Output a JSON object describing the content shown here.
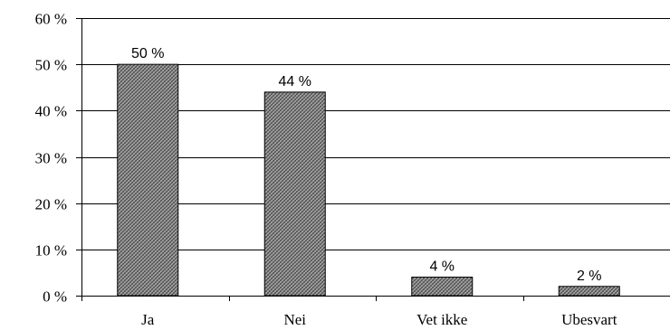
{
  "chart_data": {
    "type": "bar",
    "categories": [
      "Ja",
      "Nei",
      "Vet ikke",
      "Ubesvart"
    ],
    "values": [
      50,
      44,
      4,
      2
    ],
    "data_labels": [
      "50 %",
      "44 %",
      "4 %",
      "2 %"
    ],
    "title": "",
    "xlabel": "",
    "ylabel": "",
    "ylim": [
      0,
      60
    ],
    "y_ticks": [
      0,
      10,
      20,
      30,
      40,
      50,
      60
    ],
    "y_tick_labels": [
      "0 %",
      "10 %",
      "20 %",
      "30 %",
      "40 %",
      "50 %",
      "60 %"
    ],
    "grid": true,
    "legend": "none",
    "bar_fill": "#8c8c8c",
    "bar_pattern": "crosshatch"
  }
}
